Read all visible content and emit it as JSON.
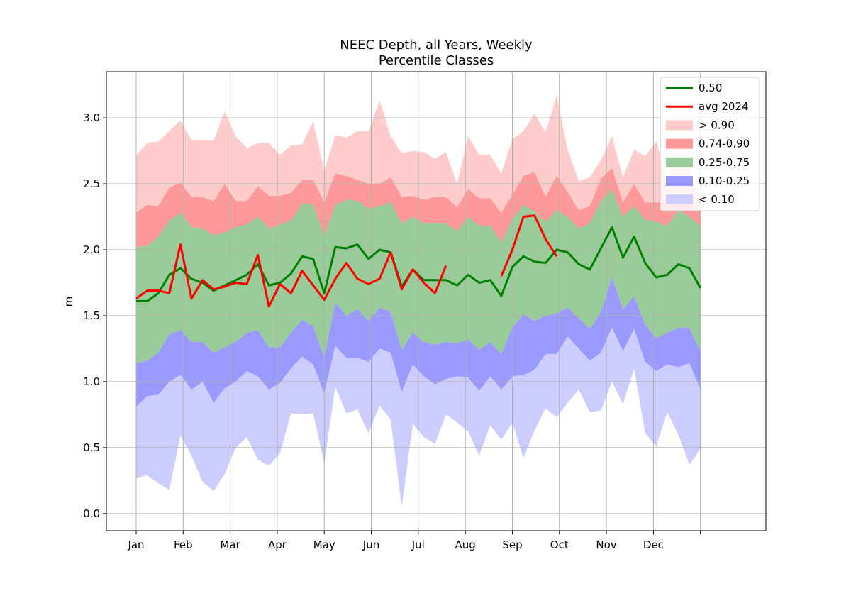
{
  "chart_data": {
    "type": "area",
    "title_line1": "NEEC Depth, all Years, Weekly",
    "title_line2": "Percentile Classes",
    "xlabel": "",
    "ylabel": "m",
    "xlim": [
      0,
      1
    ],
    "ylim": [
      -0.13,
      3.35
    ],
    "grid": true,
    "legend_position": "top-right",
    "x_ticks": [
      {
        "label": "Jan",
        "pos": 0.0
      },
      {
        "label": "Feb",
        "pos": 0.0769
      },
      {
        "label": "Mar",
        "pos": 0.1538
      },
      {
        "label": "Apr",
        "pos": 0.2308
      },
      {
        "label": "May",
        "pos": 0.3077
      },
      {
        "label": "Jun",
        "pos": 0.3846
      },
      {
        "label": "Jul",
        "pos": 0.4615
      },
      {
        "label": "Aug",
        "pos": 0.5385
      },
      {
        "label": "Sep",
        "pos": 0.6154
      },
      {
        "label": "Oct",
        "pos": 0.6923
      },
      {
        "label": "Nov",
        "pos": 0.7692
      },
      {
        "label": "Dec",
        "pos": 0.8462
      },
      {
        "label": "",
        "pos": 0.9231
      }
    ],
    "y_ticks": [
      "0.0",
      "0.5",
      "1.0",
      "1.5",
      "2.0",
      "2.5",
      "3.0"
    ],
    "y_tick_values": [
      0,
      0.5,
      1.0,
      1.5,
      2.0,
      2.5,
      3.0
    ],
    "week_span": 0.9231,
    "weeks": 52,
    "series": [
      {
        "name": "0.50",
        "type": "line",
        "color": "#008000",
        "values": [
          1.61,
          1.61,
          1.67,
          1.81,
          1.86,
          1.78,
          1.75,
          1.69,
          1.73,
          1.77,
          1.81,
          1.89,
          1.73,
          1.75,
          1.82,
          1.95,
          1.93,
          1.67,
          2.02,
          2.01,
          2.04,
          1.93,
          2.0,
          1.98,
          1.72,
          1.85,
          1.77,
          1.77,
          1.77,
          1.73,
          1.81,
          1.75,
          1.77,
          1.65,
          1.87,
          1.95,
          1.91,
          1.9,
          2.0,
          1.98,
          1.89,
          1.85,
          2.01,
          2.17,
          1.94,
          2.1,
          1.9,
          1.79,
          1.81,
          1.89,
          1.86,
          1.71
        ]
      },
      {
        "name": "avg 2024",
        "type": "line",
        "color": "#ff0000",
        "values": [
          1.63,
          1.69,
          1.69,
          1.67,
          2.04,
          1.63,
          1.77,
          1.7,
          1.72,
          1.75,
          1.74,
          1.96,
          1.57,
          1.74,
          1.67,
          1.84,
          1.73,
          1.62,
          1.78,
          1.9,
          1.78,
          1.74,
          1.78,
          1.98,
          1.7,
          1.85,
          1.75,
          1.67,
          1.88,
          null,
          null,
          null,
          null,
          1.8,
          2.0,
          2.25,
          2.26,
          2.08,
          1.95,
          null,
          null,
          null,
          null,
          null,
          null,
          null,
          null,
          null,
          null,
          null,
          null,
          null
        ]
      },
      {
        "name": "> 0.90",
        "type": "band",
        "color": "#ffcccc",
        "lower_ref": "p90",
        "upper_ref": "max"
      },
      {
        "name": "0.74-0.90",
        "type": "band",
        "color": "#ff9999",
        "lower_ref": "p75",
        "upper_ref": "p90"
      },
      {
        "name": "0.25-0.75",
        "type": "band",
        "color": "#99cc99",
        "lower_ref": "p25",
        "upper_ref": "p75"
      },
      {
        "name": "0.10-0.25",
        "type": "band",
        "color": "#9999ff",
        "lower_ref": "p10",
        "upper_ref": "p25"
      },
      {
        "name": "< 0.10",
        "type": "band",
        "color": "#ccccff",
        "lower_ref": "min",
        "upper_ref": "p10"
      }
    ],
    "percentiles": {
      "max": [
        2.71,
        2.81,
        2.82,
        2.9,
        2.98,
        2.83,
        2.83,
        2.83,
        3.05,
        2.86,
        2.77,
        2.81,
        2.81,
        2.72,
        2.79,
        2.8,
        2.97,
        2.6,
        2.87,
        2.85,
        2.9,
        2.9,
        3.13,
        2.86,
        2.73,
        2.75,
        2.74,
        2.69,
        2.74,
        2.5,
        2.86,
        2.72,
        2.72,
        2.58,
        2.84,
        2.9,
        3.03,
        2.89,
        3.17,
        2.76,
        2.52,
        2.55,
        2.68,
        2.86,
        2.55,
        2.76,
        2.71,
        2.82,
        2.53,
        2.71,
        2.62,
        2.37
      ],
      "p90": [
        2.28,
        2.34,
        2.33,
        2.47,
        2.51,
        2.4,
        2.4,
        2.37,
        2.5,
        2.37,
        2.37,
        2.48,
        2.41,
        2.41,
        2.43,
        2.53,
        2.53,
        2.36,
        2.58,
        2.56,
        2.53,
        2.5,
        2.5,
        2.55,
        2.4,
        2.41,
        2.38,
        2.4,
        2.4,
        2.32,
        2.46,
        2.39,
        2.39,
        2.28,
        2.42,
        2.56,
        2.59,
        2.4,
        2.56,
        2.44,
        2.3,
        2.33,
        2.54,
        2.62,
        2.36,
        2.5,
        2.36,
        2.36,
        2.36,
        2.36,
        2.36,
        2.3
      ],
      "p75": [
        2.02,
        2.03,
        2.1,
        2.22,
        2.28,
        2.17,
        2.16,
        2.11,
        2.13,
        2.17,
        2.19,
        2.25,
        2.16,
        2.19,
        2.22,
        2.35,
        2.34,
        2.11,
        2.34,
        2.38,
        2.37,
        2.31,
        2.33,
        2.36,
        2.2,
        2.25,
        2.2,
        2.2,
        2.2,
        2.14,
        2.25,
        2.18,
        2.18,
        2.06,
        2.23,
        2.34,
        2.29,
        2.21,
        2.3,
        2.25,
        2.16,
        2.2,
        2.37,
        2.46,
        2.25,
        2.33,
        2.23,
        2.21,
        2.18,
        2.3,
        2.25,
        2.18
      ],
      "p25": [
        1.14,
        1.16,
        1.22,
        1.36,
        1.39,
        1.3,
        1.3,
        1.22,
        1.26,
        1.3,
        1.37,
        1.39,
        1.26,
        1.26,
        1.37,
        1.47,
        1.42,
        1.18,
        1.6,
        1.5,
        1.55,
        1.46,
        1.56,
        1.53,
        1.24,
        1.37,
        1.3,
        1.28,
        1.3,
        1.29,
        1.32,
        1.24,
        1.3,
        1.21,
        1.41,
        1.51,
        1.46,
        1.5,
        1.52,
        1.56,
        1.48,
        1.4,
        1.53,
        1.79,
        1.55,
        1.65,
        1.43,
        1.33,
        1.37,
        1.41,
        1.41,
        1.23
      ],
      "p10": [
        0.81,
        0.89,
        0.9,
        1.0,
        1.05,
        0.94,
        1.0,
        0.84,
        0.95,
        1.0,
        1.08,
        1.04,
        0.94,
        0.99,
        1.1,
        1.19,
        1.13,
        0.91,
        1.27,
        1.18,
        1.18,
        1.15,
        1.25,
        1.22,
        0.92,
        1.13,
        1.04,
        0.98,
        1.02,
        1.04,
        1.03,
        0.93,
        1.04,
        0.94,
        1.04,
        1.05,
        1.09,
        1.21,
        1.21,
        1.34,
        1.25,
        1.16,
        1.22,
        1.41,
        1.23,
        1.4,
        1.15,
        1.08,
        1.13,
        1.11,
        1.14,
        0.94
      ],
      "min": [
        0.27,
        0.29,
        0.23,
        0.18,
        0.59,
        0.44,
        0.24,
        0.17,
        0.3,
        0.5,
        0.58,
        0.41,
        0.36,
        0.46,
        0.76,
        0.75,
        0.76,
        0.38,
        0.96,
        0.76,
        0.79,
        0.61,
        0.82,
        0.71,
        0.05,
        0.68,
        0.58,
        0.53,
        0.75,
        0.69,
        0.62,
        0.44,
        0.67,
        0.56,
        0.69,
        0.42,
        0.63,
        0.8,
        0.73,
        0.84,
        0.94,
        0.77,
        0.78,
        1.0,
        0.83,
        1.1,
        0.61,
        0.51,
        0.77,
        0.6,
        0.37,
        0.49
      ]
    }
  }
}
